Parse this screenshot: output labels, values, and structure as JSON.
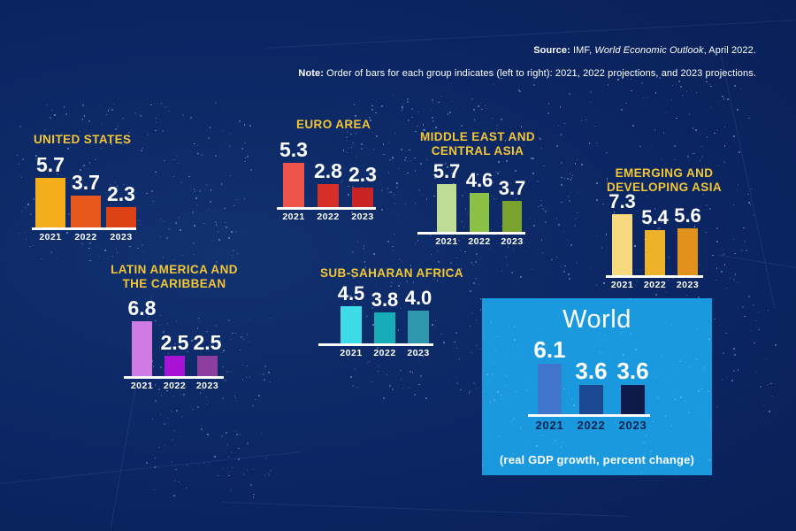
{
  "source_line": {
    "label": "Source:",
    "pre_italic": " IMF, ",
    "italic": "World Economic Outlook",
    "post_italic": ", April 2022."
  },
  "note_line": {
    "label": "Note:",
    "text": " Order of bars for each group indicates (left to right): 2021, 2022 projections, and 2023 projections."
  },
  "world_panel": {
    "title": "World",
    "caption": "(real GDP growth, percent change)",
    "background_color": "#1a99de",
    "year_text_color": "#0e2350"
  },
  "colors": {
    "background": "#0b2663",
    "region_title": "#f3c636",
    "value_text": "#ffffff",
    "baseline": "#ffffff"
  },
  "chart_data": [
    {
      "key": "us",
      "type": "bar",
      "region": "UNITED STATES",
      "title_lines": [
        "UNITED STATES"
      ],
      "categories": [
        "2021",
        "2022",
        "2023"
      ],
      "values": [
        5.7,
        3.7,
        2.3
      ],
      "bar_colors": [
        "#f4ae1b",
        "#e8571c",
        "#dc4214"
      ]
    },
    {
      "key": "euro",
      "type": "bar",
      "region": "EURO AREA",
      "title_lines": [
        "EURO AREA"
      ],
      "categories": [
        "2021",
        "2022",
        "2023"
      ],
      "values": [
        5.3,
        2.8,
        2.3
      ],
      "bar_colors": [
        "#f0554b",
        "#d62f28",
        "#c92424"
      ]
    },
    {
      "key": "meca",
      "type": "bar",
      "region": "MIDDLE EAST AND CENTRAL ASIA",
      "title_lines": [
        "MIDDLE EAST AND",
        "CENTRAL ASIA"
      ],
      "categories": [
        "2021",
        "2022",
        "2023"
      ],
      "values": [
        5.7,
        4.6,
        3.7
      ],
      "bar_colors": [
        "#bedc96",
        "#8cc145",
        "#7aa22e"
      ]
    },
    {
      "key": "eda",
      "type": "bar",
      "region": "EMERGING AND DEVELOPING ASIA",
      "title_lines": [
        "EMERGING AND",
        "DEVELOPING ASIA"
      ],
      "categories": [
        "2021",
        "2022",
        "2023"
      ],
      "values": [
        7.3,
        5.4,
        5.6
      ],
      "bar_colors": [
        "#f9d97e",
        "#edb22a",
        "#e0921c"
      ]
    },
    {
      "key": "lac",
      "type": "bar",
      "region": "LATIN AMERICA AND THE CARIBBEAN",
      "title_lines": [
        "LATIN AMERICA AND",
        "THE CARIBBEAN"
      ],
      "categories": [
        "2021",
        "2022",
        "2023"
      ],
      "values": [
        6.8,
        2.5,
        2.5
      ],
      "bar_colors": [
        "#d07ae6",
        "#a714d6",
        "#8d3f9f"
      ]
    },
    {
      "key": "ssa",
      "type": "bar",
      "region": "SUB-SAHARAN AFRICA",
      "title_lines": [
        "SUB-SAHARAN AFRICA"
      ],
      "categories": [
        "2021",
        "2022",
        "2023"
      ],
      "values": [
        4.5,
        3.8,
        4.0
      ],
      "bar_colors": [
        "#3edce8",
        "#16adb9",
        "#2e97ae"
      ]
    },
    {
      "key": "world",
      "type": "bar",
      "region": "World",
      "title_lines": [],
      "categories": [
        "2021",
        "2022",
        "2023"
      ],
      "values": [
        6.1,
        3.6,
        3.6
      ],
      "bar_colors": [
        "#4077cc",
        "#1b4890",
        "#0d1b4a"
      ]
    }
  ]
}
